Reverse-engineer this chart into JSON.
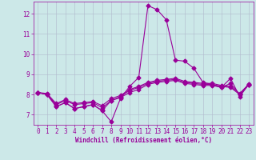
{
  "xlabel": "Windchill (Refroidissement éolien,°C)",
  "x": [
    0,
    1,
    2,
    3,
    4,
    5,
    6,
    7,
    8,
    9,
    10,
    11,
    12,
    13,
    14,
    15,
    16,
    17,
    18,
    19,
    20,
    21,
    22,
    23
  ],
  "line1": [
    8.1,
    8.0,
    7.4,
    7.6,
    7.3,
    7.4,
    7.5,
    7.2,
    6.65,
    7.8,
    8.4,
    8.85,
    12.4,
    12.2,
    11.7,
    9.7,
    9.65,
    9.3,
    8.6,
    8.5,
    8.35,
    8.8,
    7.9,
    8.5
  ],
  "line2": [
    8.1,
    8.0,
    7.5,
    7.7,
    7.5,
    7.55,
    7.6,
    7.35,
    7.7,
    7.9,
    8.2,
    8.35,
    8.55,
    8.65,
    8.7,
    8.75,
    8.6,
    8.55,
    8.5,
    8.5,
    8.4,
    8.35,
    8.0,
    8.5
  ],
  "line3": [
    8.1,
    8.05,
    7.55,
    7.75,
    7.55,
    7.6,
    7.65,
    7.45,
    7.8,
    7.95,
    8.25,
    8.4,
    8.6,
    8.7,
    8.75,
    8.8,
    8.65,
    8.6,
    8.55,
    8.55,
    8.45,
    8.4,
    8.05,
    8.52
  ],
  "line4": [
    8.1,
    8.0,
    7.4,
    7.6,
    7.3,
    7.4,
    7.5,
    7.2,
    7.7,
    7.85,
    8.1,
    8.25,
    8.5,
    8.6,
    8.65,
    8.7,
    8.55,
    8.5,
    8.45,
    8.45,
    8.35,
    8.55,
    8.0,
    8.5
  ],
  "ylim": [
    6.5,
    12.6
  ],
  "yticks": [
    7,
    8,
    9,
    10,
    11,
    12
  ],
  "xticks": [
    0,
    1,
    2,
    3,
    4,
    5,
    6,
    7,
    8,
    9,
    10,
    11,
    12,
    13,
    14,
    15,
    16,
    17,
    18,
    19,
    20,
    21,
    22,
    23
  ],
  "line_color": "#990099",
  "bg_color": "#cce8e8",
  "grid_color": "#b0b8cc",
  "marker": "D",
  "marker_size": 2.5,
  "linewidth": 0.8,
  "xlabel_fontsize": 5.5,
  "tick_fontsize": 5.5
}
